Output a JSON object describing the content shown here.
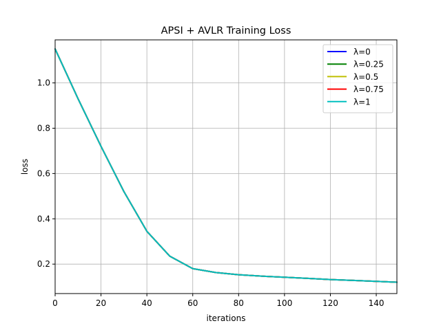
{
  "chart_data": {
    "type": "line",
    "title": "APSI + AVLR Training Loss",
    "xlabel": "iterations",
    "ylabel": "loss",
    "xlim": [
      0,
      149
    ],
    "ylim": [
      0.07,
      1.19
    ],
    "x_ticks": [
      0,
      20,
      40,
      60,
      80,
      100,
      120,
      140
    ],
    "y_ticks": [
      0.2,
      0.4,
      0.6,
      0.8,
      1.0
    ],
    "y_tick_labels": [
      "0.2",
      "0.4",
      "0.6",
      "0.8",
      "1.0"
    ],
    "grid": true,
    "legend_position": "top-right",
    "x": [
      0,
      10,
      20,
      30,
      40,
      50,
      60,
      70,
      80,
      90,
      100,
      110,
      120,
      130,
      140,
      149
    ],
    "series": [
      {
        "name": "λ=0",
        "color": "#0000ff",
        "values": [
          1.15,
          0.93,
          0.72,
          0.52,
          0.345,
          0.235,
          0.18,
          0.163,
          0.153,
          0.147,
          0.142,
          0.137,
          0.132,
          0.128,
          0.124,
          0.12
        ]
      },
      {
        "name": "λ=0.25",
        "color": "#008000",
        "values": [
          1.15,
          0.93,
          0.72,
          0.52,
          0.345,
          0.235,
          0.18,
          0.163,
          0.153,
          0.147,
          0.142,
          0.137,
          0.132,
          0.128,
          0.124,
          0.12
        ]
      },
      {
        "name": "λ=0.5",
        "color": "#bfbf00",
        "values": [
          1.15,
          0.93,
          0.72,
          0.52,
          0.345,
          0.235,
          0.18,
          0.163,
          0.153,
          0.147,
          0.142,
          0.137,
          0.132,
          0.128,
          0.124,
          0.12
        ]
      },
      {
        "name": "λ=0.75",
        "color": "#ff0000",
        "values": [
          1.15,
          0.93,
          0.72,
          0.52,
          0.345,
          0.235,
          0.18,
          0.163,
          0.153,
          0.147,
          0.142,
          0.137,
          0.132,
          0.128,
          0.124,
          0.12
        ]
      },
      {
        "name": "λ=1",
        "color": "#00bfbf",
        "values": [
          1.15,
          0.93,
          0.72,
          0.52,
          0.345,
          0.235,
          0.18,
          0.163,
          0.153,
          0.147,
          0.142,
          0.137,
          0.132,
          0.128,
          0.124,
          0.12
        ]
      }
    ]
  }
}
